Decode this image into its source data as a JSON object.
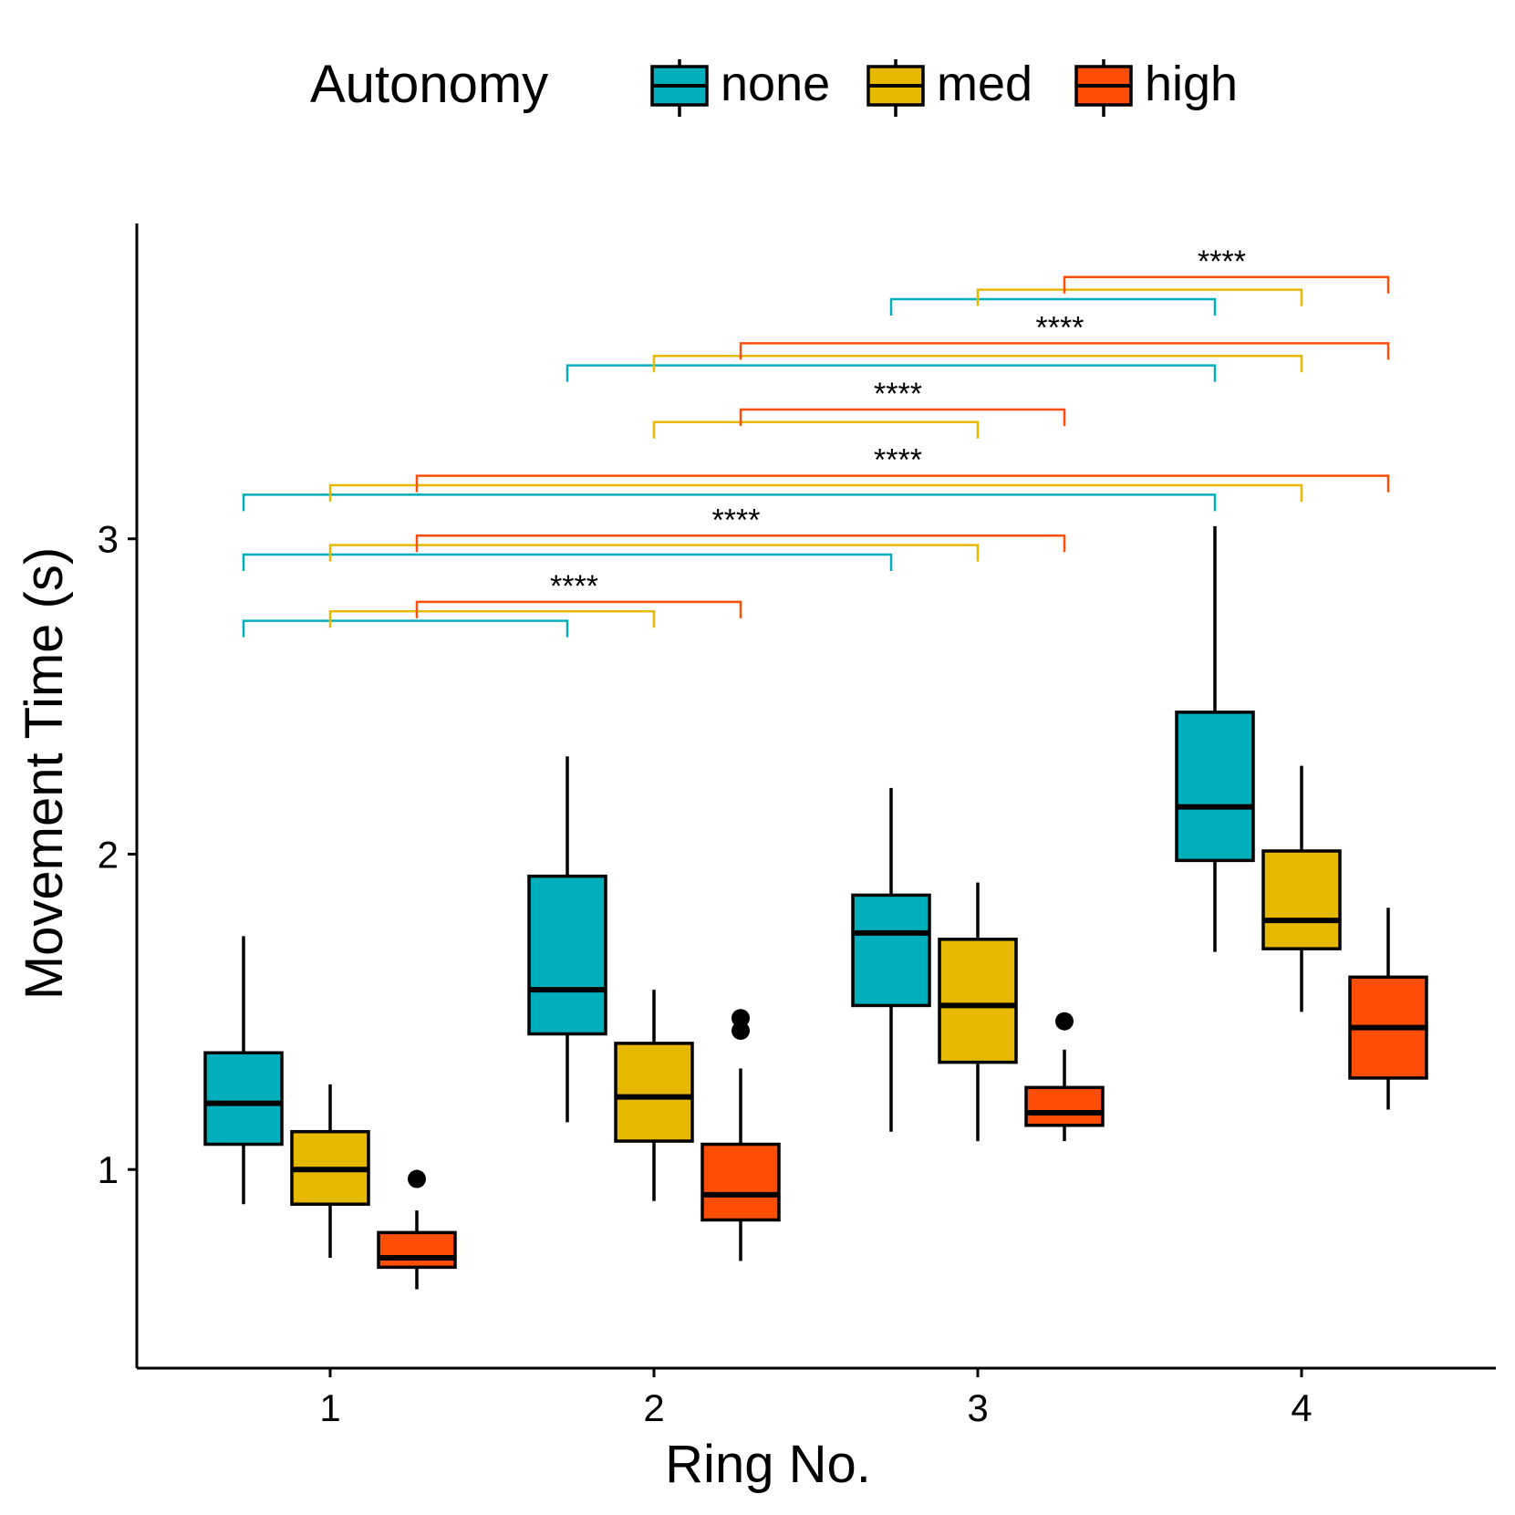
{
  "chart_data": {
    "type": "boxplot",
    "xlabel": "Ring No.",
    "ylabel": "Movement Time (s)",
    "categories": [
      "1",
      "2",
      "3",
      "4"
    ],
    "y_ticks": [
      "1",
      "2",
      "3"
    ],
    "ylim": [
      0.37,
      4.0
    ],
    "legend": {
      "title": "Autonomy",
      "position": "top",
      "entries": [
        "none",
        "med",
        "high"
      ]
    },
    "colors": {
      "none": "#00AFBB",
      "med": "#E7B800",
      "high": "#FC4E07"
    },
    "series": [
      {
        "name": "none",
        "boxes": [
          {
            "category": "1",
            "whisker_low": 0.89,
            "q1": 1.08,
            "median": 1.21,
            "q3": 1.37,
            "whisker_high": 1.74,
            "outliers": []
          },
          {
            "category": "2",
            "whisker_low": 1.15,
            "q1": 1.43,
            "median": 1.57,
            "q3": 1.93,
            "whisker_high": 2.31,
            "outliers": []
          },
          {
            "category": "3",
            "whisker_low": 1.12,
            "q1": 1.52,
            "median": 1.75,
            "q3": 1.87,
            "whisker_high": 2.21,
            "outliers": []
          },
          {
            "category": "4",
            "whisker_low": 1.69,
            "q1": 1.98,
            "median": 2.15,
            "q3": 2.45,
            "whisker_high": 3.04,
            "outliers": []
          }
        ]
      },
      {
        "name": "med",
        "boxes": [
          {
            "category": "1",
            "whisker_low": 0.72,
            "q1": 0.89,
            "median": 1.0,
            "q3": 1.12,
            "whisker_high": 1.27,
            "outliers": []
          },
          {
            "category": "2",
            "whisker_low": 0.9,
            "q1": 1.09,
            "median": 1.23,
            "q3": 1.4,
            "whisker_high": 1.57,
            "outliers": []
          },
          {
            "category": "3",
            "whisker_low": 1.09,
            "q1": 1.34,
            "median": 1.52,
            "q3": 1.73,
            "whisker_high": 1.91,
            "outliers": []
          },
          {
            "category": "4",
            "whisker_low": 1.5,
            "q1": 1.7,
            "median": 1.79,
            "q3": 2.01,
            "whisker_high": 2.28,
            "outliers": []
          }
        ]
      },
      {
        "name": "high",
        "boxes": [
          {
            "category": "1",
            "whisker_low": 0.62,
            "q1": 0.69,
            "median": 0.72,
            "q3": 0.8,
            "whisker_high": 0.87,
            "outliers": [
              0.97
            ]
          },
          {
            "category": "2",
            "whisker_low": 0.71,
            "q1": 0.84,
            "median": 0.92,
            "q3": 1.08,
            "whisker_high": 1.32,
            "outliers": [
              1.44,
              1.48
            ]
          },
          {
            "category": "3",
            "whisker_low": 1.09,
            "q1": 1.14,
            "median": 1.18,
            "q3": 1.26,
            "whisker_high": 1.38,
            "outliers": [
              1.47
            ]
          },
          {
            "category": "4",
            "whisker_low": 1.19,
            "q1": 1.29,
            "median": 1.45,
            "q3": 1.61,
            "whisker_high": 1.83,
            "outliers": []
          }
        ]
      }
    ],
    "significance_brackets": [
      {
        "label": "****",
        "from": "1",
        "to": "2",
        "none_y": 2.74,
        "med_y": 2.77,
        "high_y": 2.8
      },
      {
        "label": "****",
        "from": "1",
        "to": "3",
        "none_y": 2.95,
        "med_y": 2.98,
        "high_y": 3.01
      },
      {
        "label": "****",
        "from": "1",
        "to": "4",
        "none_y": 3.14,
        "med_y": 3.17,
        "high_y": 3.2
      },
      {
        "label": "****",
        "from": "2",
        "to": "3",
        "none_y": null,
        "med_y": 3.37,
        "high_y": 3.41
      },
      {
        "label": "****",
        "from": "2",
        "to": "4",
        "none_y": 3.55,
        "med_y": 3.58,
        "high_y": 3.62
      },
      {
        "label": "****",
        "from": "3",
        "to": "4",
        "none_y": 3.76,
        "med_y": 3.79,
        "high_y": 3.83
      }
    ]
  }
}
